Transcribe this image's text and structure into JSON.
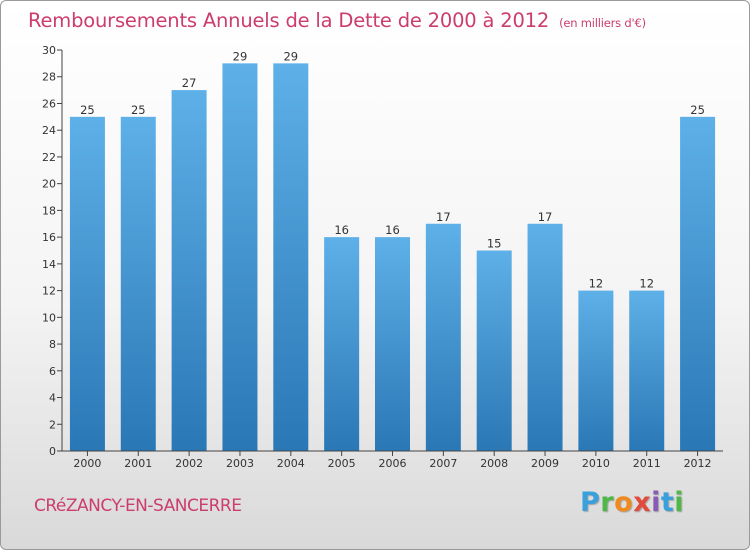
{
  "header": {
    "title": "Remboursements Annuels de la Dette de 2000 à 2012",
    "unit": "(en milliers d'€)"
  },
  "footer": {
    "city": "CRéZANCY-EN-SANCERRE",
    "brand": "Proxiti"
  },
  "colors": {
    "title": "#cc3d6e",
    "bar_light": "#5eb0e8",
    "bar_dark": "#2a77b5",
    "axis": "#444444",
    "grid": "#cccccc"
  },
  "chart_data": {
    "type": "bar",
    "categories": [
      "2000",
      "2001",
      "2002",
      "2003",
      "2004",
      "2005",
      "2006",
      "2007",
      "2008",
      "2009",
      "2010",
      "2011",
      "2012"
    ],
    "values": [
      25,
      25,
      27,
      29,
      29,
      16,
      16,
      17,
      15,
      17,
      12,
      12,
      25
    ],
    "title": "Remboursements Annuels de la Dette de 2000 à 2012",
    "subtitle": "(en milliers d'€)",
    "xlabel": "",
    "ylabel": "",
    "ylim": [
      0,
      30
    ],
    "yticks": [
      0,
      2,
      4,
      6,
      8,
      10,
      12,
      14,
      16,
      18,
      20,
      22,
      24,
      26,
      28,
      30
    ],
    "grid": false,
    "data_labels": true
  }
}
